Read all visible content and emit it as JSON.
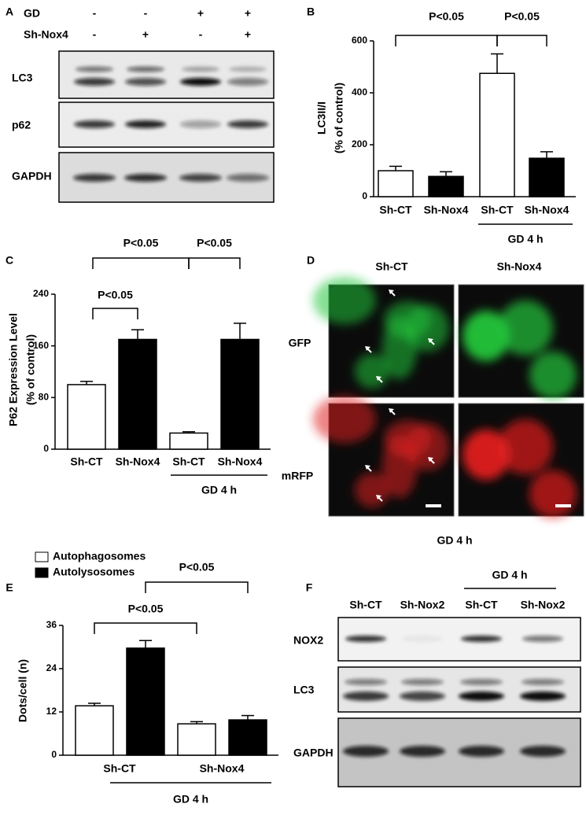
{
  "panel_letters": [
    "A",
    "B",
    "C",
    "D",
    "E",
    "F"
  ],
  "panel_a": {
    "header_rows": [
      {
        "label": "GD",
        "signs": [
          "-",
          "-",
          "+",
          "+"
        ]
      },
      {
        "label": "Sh-Nox4",
        "signs": [
          "-",
          "+",
          "-",
          "+"
        ]
      }
    ],
    "blot_labels": [
      "LC3",
      "p62",
      "GAPDH"
    ]
  },
  "chart_data": [
    {
      "type": "bar",
      "ylabel": [
        "LC3II/I",
        "(% of control)"
      ],
      "categories": [
        "Sh-CT",
        "Sh-Nox4",
        "Sh-CT",
        "Sh-Nox4"
      ],
      "values": [
        100,
        78,
        475,
        148
      ],
      "errors": [
        17,
        18,
        75,
        25
      ],
      "colors": [
        "#ffffff",
        "#000000",
        "#ffffff",
        "#000000"
      ],
      "ylim": [
        0,
        600
      ],
      "yticks": [
        0,
        200,
        400,
        600
      ],
      "group_label": "GD 4 h",
      "annotations": [
        "P<0.05",
        "P<0.05"
      ]
    },
    {
      "type": "bar",
      "ylabel": [
        "P62 Expression Level",
        "(% of control)"
      ],
      "categories": [
        "Sh-CT",
        "Sh-Nox4",
        "Sh-CT",
        "Sh-Nox4"
      ],
      "values": [
        100,
        170,
        25,
        170
      ],
      "errors": [
        5,
        15,
        2,
        25
      ],
      "colors": [
        "#ffffff",
        "#000000",
        "#ffffff",
        "#000000"
      ],
      "ylim": [
        0,
        240
      ],
      "yticks": [
        0,
        80,
        160,
        240
      ],
      "group_label": "GD 4 h",
      "annotations": [
        "P<0.05",
        "P<0.05",
        "P<0.05"
      ]
    },
    {
      "type": "bar",
      "ylabel": [
        "Dots/cell (n)"
      ],
      "categories": [
        "Sh-CT",
        "Sh-Nox4"
      ],
      "series": [
        {
          "name": "Autophagosomes",
          "color": "#ffffff",
          "values": [
            13.7,
            8.7
          ],
          "errors": [
            0.7,
            0.6
          ]
        },
        {
          "name": "Autolysosomes",
          "color": "#000000",
          "values": [
            29.7,
            9.8
          ],
          "errors": [
            2.1,
            1.2
          ]
        }
      ],
      "ylim": [
        0,
        36
      ],
      "yticks": [
        0,
        12,
        24,
        36
      ],
      "group_label": "GD 4 h",
      "annotations": [
        "P<0.05",
        "P<0.05"
      ]
    }
  ],
  "panel_d": {
    "columns": [
      "Sh-CT",
      "Sh-Nox4"
    ],
    "rows": [
      "GFP",
      "mRFP"
    ],
    "caption": "GD 4 h"
  },
  "panel_f": {
    "group_label": "GD 4 h",
    "columns": [
      "Sh-CT",
      "Sh-Nox2",
      "Sh-CT",
      "Sh-Nox2"
    ],
    "blot_labels": [
      "NOX2",
      "LC3",
      "GAPDH"
    ]
  }
}
